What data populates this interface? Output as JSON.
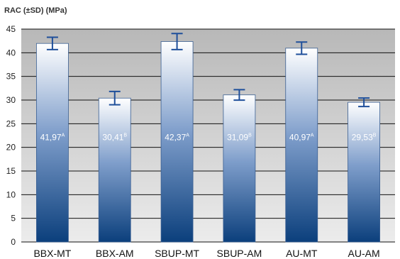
{
  "chart_data": {
    "type": "bar",
    "ylabel": "RAC (±SD) (MPa)",
    "xlabel": "",
    "title": "",
    "ylim": [
      0,
      45
    ],
    "yticks": [
      0,
      5,
      10,
      15,
      20,
      25,
      30,
      35,
      40,
      45
    ],
    "grid": true,
    "categories": [
      "BBX-MT",
      "BBX-AM",
      "SBUP-MT",
      "SBUP-AM",
      "AU-MT",
      "AU-AM"
    ],
    "values": [
      41.97,
      30.41,
      42.37,
      31.09,
      40.97,
      29.53
    ],
    "errors": [
      1.3,
      1.4,
      1.7,
      1.1,
      1.3,
      0.9
    ],
    "value_labels": [
      "41,97",
      "30,41",
      "42,37",
      "31,09",
      "40,97",
      "29,53"
    ],
    "group_letters": [
      "A",
      "B",
      "A",
      "B",
      "A",
      "B"
    ],
    "colors": {
      "plot_background": "#c4c4c4",
      "bar_top": "#ffffff",
      "bar_bottom": "#0b3f7c",
      "error_bar": "#1f4f9a",
      "grid": "#111111"
    }
  }
}
